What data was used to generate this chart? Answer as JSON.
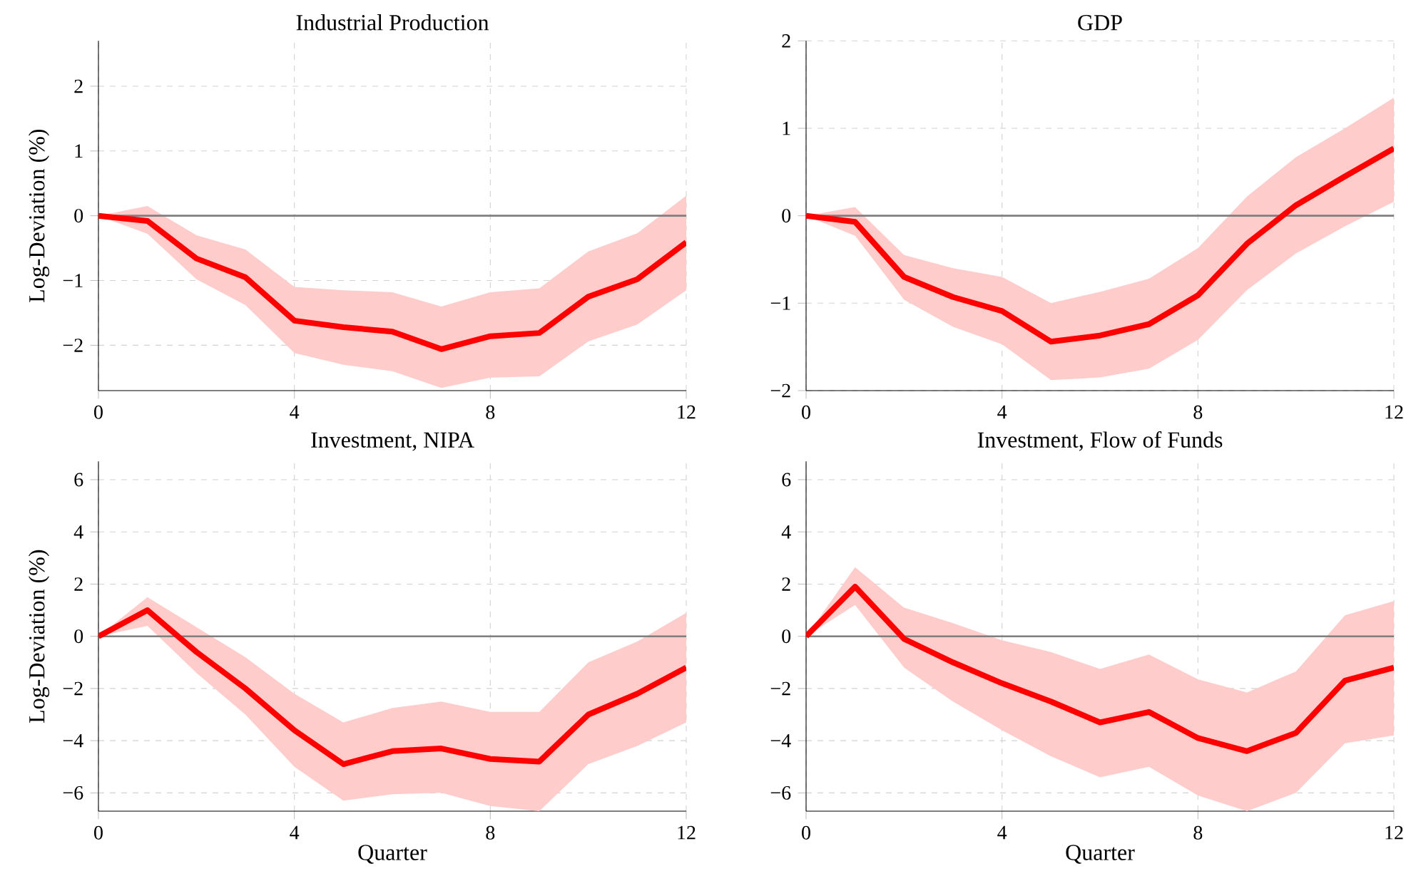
{
  "chart_data": [
    {
      "type": "line",
      "title": "Industrial Production",
      "ylabel": "Log-Deviation (%)",
      "x": [
        0,
        1,
        2,
        3,
        4,
        5,
        6,
        7,
        8,
        9,
        10,
        11,
        12
      ],
      "xlim": [
        0,
        12
      ],
      "ylim": [
        -2.7,
        2.7
      ],
      "xticks": [
        0,
        4,
        8,
        12
      ],
      "yticks": [
        {
          "value": -2,
          "label": "−2"
        },
        {
          "value": -1,
          "label": "−1"
        },
        0,
        1,
        2
      ],
      "grid": true,
      "ref_lines": [
        {
          "axis": "y",
          "value": 0,
          "color": "#7f7f7f"
        }
      ],
      "series": [
        {
          "color": "#ff0000",
          "values": [
            0,
            -0.08,
            -0.66,
            -0.95,
            -1.62,
            -1.72,
            -1.79,
            -2.06,
            -1.86,
            -1.81,
            -1.25,
            -0.98,
            -0.41
          ],
          "lower": [
            0,
            -0.28,
            -0.98,
            -1.38,
            -2.12,
            -2.3,
            -2.4,
            -2.66,
            -2.5,
            -2.48,
            -1.94,
            -1.68,
            -1.15
          ],
          "upper": [
            0,
            0.15,
            -0.3,
            -0.52,
            -1.1,
            -1.15,
            -1.18,
            -1.4,
            -1.18,
            -1.12,
            -0.55,
            -0.27,
            0.31
          ]
        }
      ]
    },
    {
      "type": "line",
      "title": "GDP",
      "x": [
        0,
        1,
        2,
        3,
        4,
        5,
        6,
        7,
        8,
        9,
        10,
        11,
        12
      ],
      "xlim": [
        0,
        12
      ],
      "ylim": [
        -2,
        2
      ],
      "xticks": [
        0,
        4,
        8,
        12
      ],
      "yticks": [
        {
          "value": -2,
          "label": "−2"
        },
        {
          "value": -1,
          "label": "−1"
        },
        0,
        1,
        2
      ],
      "grid": true,
      "ref_lines": [
        {
          "axis": "y",
          "value": 0,
          "color": "#7f7f7f"
        }
      ],
      "series": [
        {
          "color": "#ff0000",
          "values": [
            0,
            -0.07,
            -0.7,
            -0.93,
            -1.09,
            -1.44,
            -1.37,
            -1.24,
            -0.91,
            -0.32,
            0.12,
            0.45,
            0.77
          ],
          "lower": [
            0,
            -0.23,
            -0.96,
            -1.27,
            -1.47,
            -1.88,
            -1.85,
            -1.75,
            -1.42,
            -0.85,
            -0.43,
            -0.12,
            0.16
          ],
          "upper": [
            0,
            0.1,
            -0.45,
            -0.6,
            -0.7,
            -1.0,
            -0.87,
            -0.72,
            -0.37,
            0.22,
            0.67,
            1.0,
            1.35
          ]
        }
      ]
    },
    {
      "type": "line",
      "title": "Investment, NIPA",
      "ylabel": "Log-Deviation (%)",
      "xlabel": "Quarter",
      "x": [
        0,
        1,
        2,
        3,
        4,
        5,
        6,
        7,
        8,
        9,
        10,
        11,
        12
      ],
      "xlim": [
        0,
        12
      ],
      "ylim": [
        -6.7,
        6.7
      ],
      "xticks": [
        0,
        4,
        8,
        12
      ],
      "yticks": [
        {
          "value": -6,
          "label": "−6"
        },
        {
          "value": -4,
          "label": "−4"
        },
        {
          "value": -2,
          "label": "−2"
        },
        0,
        2,
        4,
        6
      ],
      "grid": true,
      "ref_lines": [
        {
          "axis": "y",
          "value": 0,
          "color": "#7f7f7f"
        }
      ],
      "series": [
        {
          "color": "#ff0000",
          "values": [
            0,
            1.0,
            -0.6,
            -2.0,
            -3.6,
            -4.9,
            -4.4,
            -4.3,
            -4.7,
            -4.8,
            -3.0,
            -2.2,
            -1.2
          ],
          "lower": [
            0,
            0.4,
            -1.4,
            -3.0,
            -5.0,
            -6.3,
            -6.05,
            -6.0,
            -6.5,
            -6.7,
            -4.9,
            -4.2,
            -3.3
          ],
          "upper": [
            0,
            1.5,
            0.35,
            -0.8,
            -2.2,
            -3.3,
            -2.75,
            -2.5,
            -2.9,
            -2.9,
            -1.0,
            -0.2,
            0.9
          ]
        }
      ]
    },
    {
      "type": "line",
      "title": "Investment, Flow of Funds",
      "xlabel": "Quarter",
      "x": [
        0,
        1,
        2,
        3,
        4,
        5,
        6,
        7,
        8,
        9,
        10,
        11,
        12
      ],
      "xlim": [
        0,
        12
      ],
      "ylim": [
        -6.7,
        6.7
      ],
      "xticks": [
        0,
        4,
        8,
        12
      ],
      "yticks": [
        {
          "value": -6,
          "label": "−6"
        },
        {
          "value": -4,
          "label": "−4"
        },
        {
          "value": -2,
          "label": "−2"
        },
        0,
        2,
        4,
        6
      ],
      "grid": true,
      "ref_lines": [
        {
          "axis": "y",
          "value": 0,
          "color": "#7f7f7f"
        }
      ],
      "series": [
        {
          "color": "#ff0000",
          "values": [
            0,
            1.9,
            -0.1,
            -1.0,
            -1.8,
            -2.5,
            -3.3,
            -2.9,
            -3.9,
            -4.4,
            -3.7,
            -1.7,
            -1.2
          ],
          "lower": [
            0,
            1.2,
            -1.2,
            -2.5,
            -3.6,
            -4.6,
            -5.4,
            -5.0,
            -6.1,
            -6.7,
            -6.0,
            -4.1,
            -3.8
          ],
          "upper": [
            0,
            2.65,
            1.1,
            0.5,
            -0.15,
            -0.6,
            -1.25,
            -0.7,
            -1.65,
            -2.15,
            -1.35,
            0.8,
            1.35
          ]
        }
      ]
    }
  ]
}
